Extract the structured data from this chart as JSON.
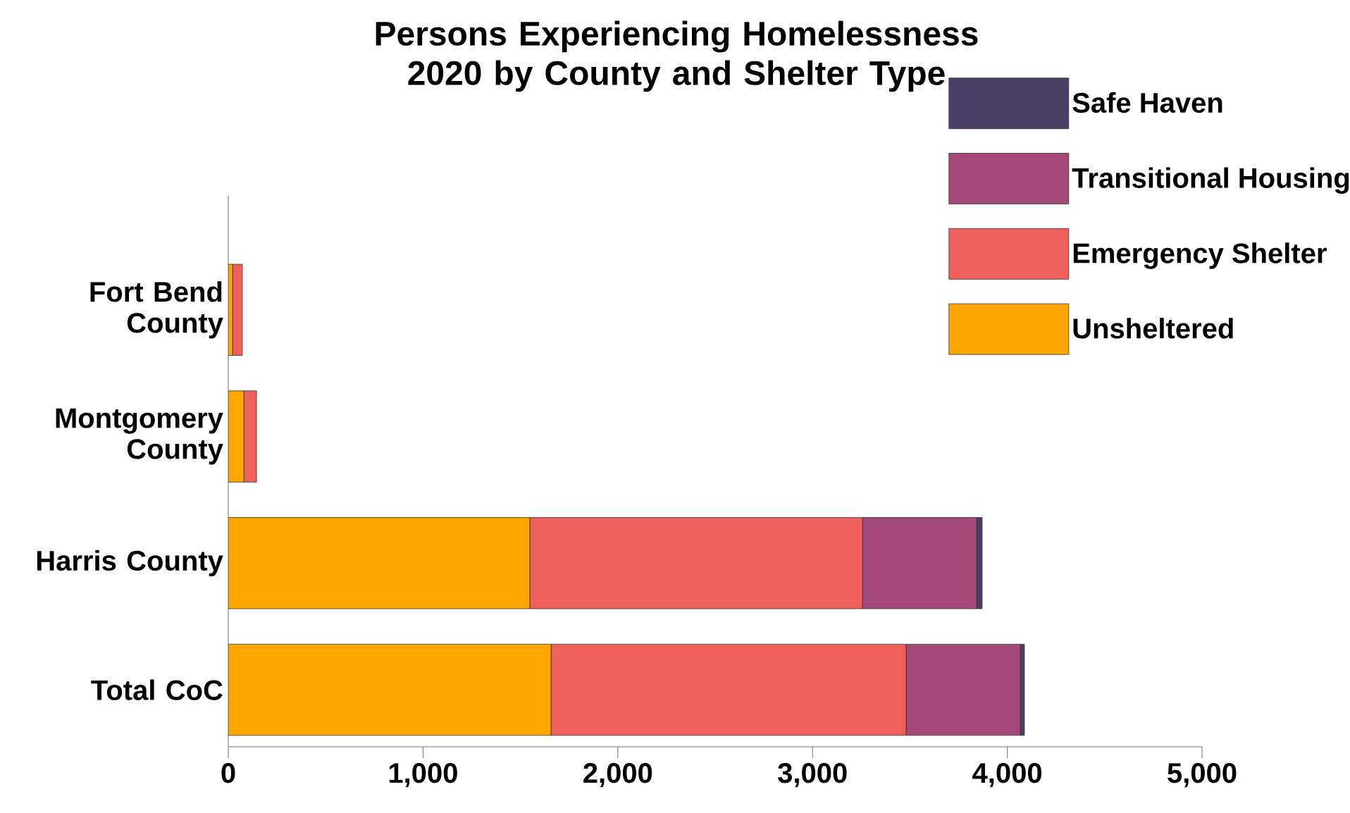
{
  "chart_data": {
    "type": "bar",
    "orientation": "horizontal",
    "stacked": true,
    "title": "Persons Experiencing Homelessness 2020 by County and Shelter Type",
    "categories": [
      "Fort Bend County",
      "Montgomery County",
      "Harris County",
      "Total CoC"
    ],
    "series": [
      {
        "name": "Unsheltered",
        "color": "#ffa600",
        "values": [
          22,
          80,
          1548,
          1657
        ]
      },
      {
        "name": "Emergency Shelter",
        "color": "#ef5f5b",
        "values": [
          50,
          65,
          1708,
          1823
        ]
      },
      {
        "name": "Transitional Housing",
        "color": "#a34877",
        "values": [
          0,
          0,
          586,
          587
        ]
      },
      {
        "name": "Safe Haven",
        "color": "#4a3d66",
        "values": [
          0,
          0,
          29,
          21
        ]
      }
    ],
    "xlim": [
      0,
      5000
    ],
    "xticks": [
      0,
      {
        "value": 1000,
        "label": "1,000"
      },
      {
        "value": 2000,
        "label": "2,000"
      },
      {
        "value": 3000,
        "label": "3,000"
      },
      {
        "value": 4000,
        "label": "4,000"
      },
      {
        "value": 5000,
        "label": "5,000"
      }
    ],
    "grid": false,
    "legend": "top right"
  }
}
